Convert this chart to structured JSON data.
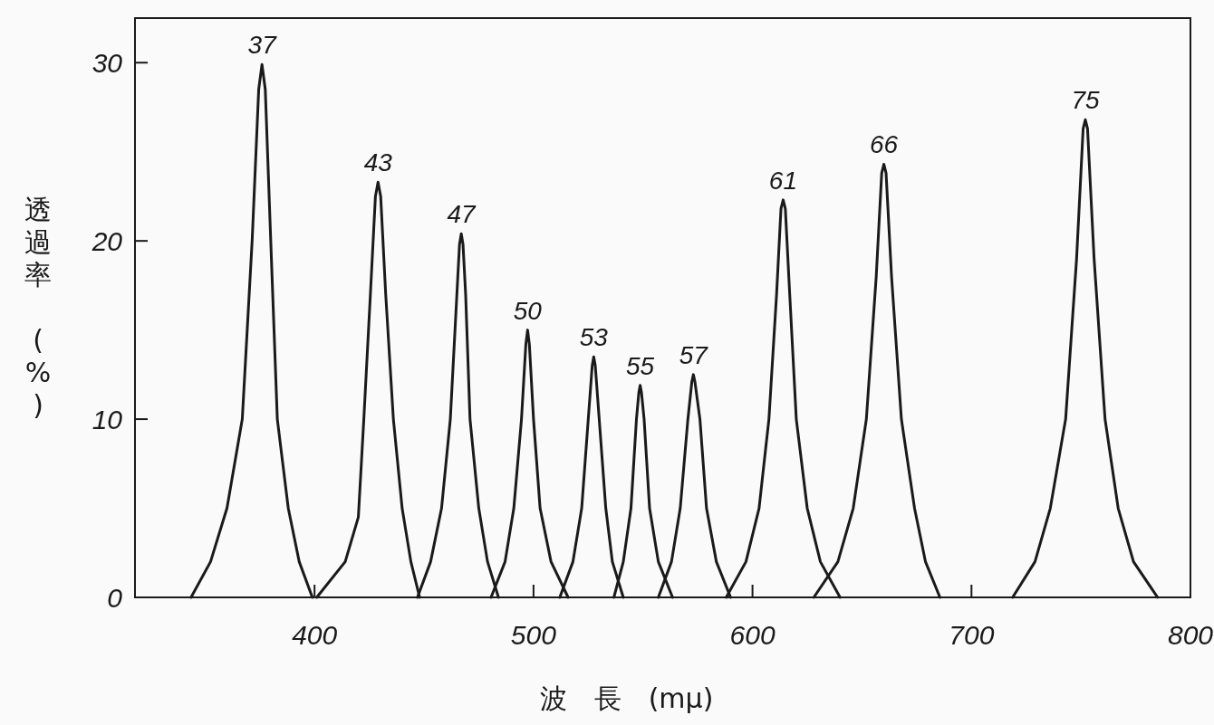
{
  "chart_data": {
    "type": "line",
    "xlabel": "波　長　(mμ)",
    "ylabel": "透過率　(%)",
    "xlim": [
      318,
      800
    ],
    "ylim": [
      0,
      32.5
    ],
    "xticks": [
      400,
      500,
      600,
      700,
      800
    ],
    "yticks": [
      0,
      10,
      20,
      30
    ],
    "series": [
      {
        "name": "37",
        "color": "#1a1a1a",
        "x": [
          343.6,
          352.5,
          360,
          367,
          371.5,
          374.5,
          376,
          377.5,
          380,
          383,
          388,
          393,
          399
        ],
        "values": [
          0,
          2,
          5,
          10,
          20,
          28.5,
          29.9,
          28.5,
          20,
          10,
          5,
          2,
          0
        ]
      },
      {
        "name": "43",
        "color": "#1a1a1a",
        "x": [
          401,
          414,
          420,
          422.5,
          425.5,
          427.8,
          429,
          430.2,
          432.5,
          436,
          440,
          444,
          448
        ],
        "values": [
          0,
          2,
          4.5,
          10,
          17,
          22.5,
          23.3,
          22.5,
          17,
          10,
          5,
          2,
          0
        ]
      },
      {
        "name": "47",
        "color": "#1a1a1a",
        "x": [
          447,
          453,
          458,
          462,
          465,
          466.2,
          467,
          467.8,
          469,
          471,
          475,
          479,
          484
        ],
        "values": [
          0,
          2,
          5,
          10,
          17,
          19.8,
          20.4,
          19.8,
          17,
          10,
          5,
          2,
          0
        ]
      },
      {
        "name": "50",
        "color": "#1a1a1a",
        "x": [
          480.6,
          487,
          491,
          494.5,
          496.5,
          497.3,
          498.1,
          500,
          503,
          508,
          515.8
        ],
        "values": [
          0,
          2,
          5,
          10,
          14.2,
          15,
          14.2,
          10,
          5,
          2,
          0
        ]
      },
      {
        "name": "53",
        "color": "#1a1a1a",
        "x": [
          512,
          518,
          522,
          525,
          526.8,
          527.5,
          528.2,
          530,
          533,
          536,
          541
        ],
        "values": [
          0,
          2,
          5,
          10,
          13,
          13.5,
          13,
          10,
          5,
          2,
          0
        ]
      },
      {
        "name": "55",
        "color": "#1a1a1a",
        "x": [
          536.7,
          541,
          544.5,
          547,
          548.1,
          548.7,
          549.3,
          550.5,
          553,
          557,
          563.5
        ],
        "values": [
          0,
          2,
          5,
          10,
          11.5,
          11.9,
          11.5,
          10,
          5,
          2,
          0
        ]
      },
      {
        "name": "57",
        "color": "#1a1a1a",
        "x": [
          557,
          563,
          567,
          570.5,
          572.3,
          573,
          573.7,
          576,
          579,
          583.5,
          590
        ],
        "values": [
          0,
          2,
          5,
          10,
          12.1,
          12.5,
          12.1,
          10,
          5,
          2,
          0
        ]
      },
      {
        "name": "61",
        "color": "#1a1a1a",
        "x": [
          588,
          597,
          603,
          607.5,
          611,
          613,
          614,
          615,
          617,
          620,
          625,
          631,
          640
        ],
        "values": [
          0,
          2,
          5,
          10,
          17,
          21.8,
          22.3,
          21.8,
          17,
          10,
          5,
          2,
          0
        ]
      },
      {
        "name": "66",
        "color": "#1a1a1a",
        "x": [
          628,
          639,
          646,
          652,
          656.5,
          659,
          660,
          661,
          663.5,
          668,
          674,
          679,
          685.6
        ],
        "values": [
          0,
          2,
          5,
          10,
          18,
          23.8,
          24.3,
          23.8,
          18,
          10,
          5,
          2,
          0
        ]
      },
      {
        "name": "75",
        "color": "#1a1a1a",
        "x": [
          718.8,
          729,
          736,
          743,
          748,
          751,
          752,
          753,
          756,
          761,
          767,
          774,
          785
        ],
        "values": [
          0,
          2,
          5,
          10,
          19,
          26.3,
          26.8,
          26.3,
          19,
          10,
          5,
          2,
          0
        ]
      }
    ]
  }
}
